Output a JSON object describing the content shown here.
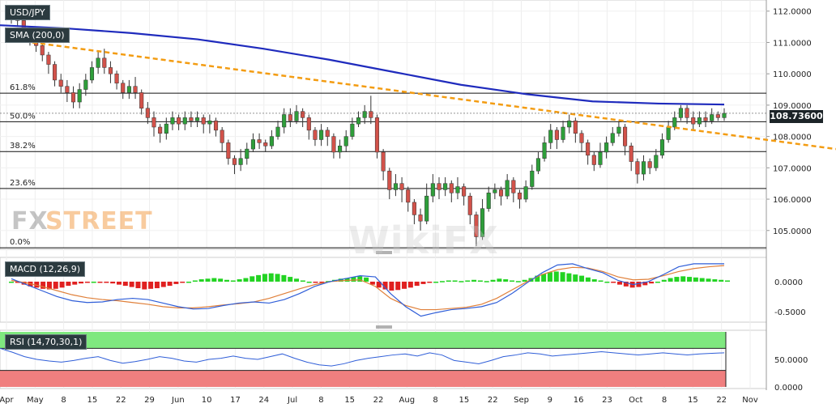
{
  "panels": {
    "main": {
      "label": "USD/JPY",
      "sma_label": "SMA (200,0)"
    },
    "macd": {
      "label": "MACD (12,26,9)"
    },
    "rsi": {
      "label": "RSI (14,70,30,1)"
    }
  },
  "last_price": "108.73600",
  "watermarks": {
    "fx": "FX",
    "street": "STREET",
    "wikifx": "WikiFX"
  },
  "colors": {
    "up": "#2e9e3a",
    "down": "#d2524a",
    "sma": "#1f2bbd",
    "trend": "#f39c12",
    "macd_line": "#2f5ed8",
    "signal_line": "#e0803a",
    "rsi_line": "#2f5ed8",
    "overbought": "#7fe87f",
    "oversold": "#f07f7f"
  },
  "chart_data": [
    {
      "type": "candlestick",
      "title": "USD/JPY",
      "x_ticks": [
        "Apr",
        "May",
        "8",
        "15",
        "22",
        "29",
        "Jun",
        "10",
        "17",
        "24",
        "Jul",
        "8",
        "15",
        "22",
        "Aug",
        "8",
        "15",
        "22",
        "Sep",
        "9",
        "16",
        "23",
        "Oct",
        "8",
        "15",
        "22",
        "Nov"
      ],
      "y_ticks": [
        "112.0000",
        "111.0000",
        "110.0000",
        "109.0000",
        "108.0000",
        "107.0000",
        "106.0000",
        "105.0000"
      ],
      "ylim": [
        104.4,
        112.2
      ],
      "fib_levels": [
        {
          "label": "61.8%",
          "value": 109.38
        },
        {
          "label": "50.0%",
          "value": 108.47
        },
        {
          "label": "38.2%",
          "value": 107.52
        },
        {
          "label": "23.6%",
          "value": 106.34
        },
        {
          "label": "0.0%",
          "value": 104.45
        }
      ],
      "candles": [
        [
          111.9,
          111.8,
          112.1,
          111.6
        ],
        [
          111.8,
          111.7,
          112.0,
          111.5
        ],
        [
          111.7,
          111.3,
          111.8,
          111.1
        ],
        [
          111.3,
          111.1,
          111.5,
          110.9
        ],
        [
          111.1,
          110.9,
          111.2,
          110.7
        ],
        [
          110.9,
          110.6,
          111.0,
          110.4
        ],
        [
          110.6,
          110.3,
          110.7,
          110.0
        ],
        [
          110.3,
          109.8,
          110.4,
          109.6
        ],
        [
          109.8,
          109.6,
          110.0,
          109.4
        ],
        [
          109.6,
          109.4,
          109.8,
          109.1
        ],
        [
          109.4,
          109.1,
          109.6,
          108.9
        ],
        [
          109.1,
          109.5,
          109.7,
          108.9
        ],
        [
          109.5,
          109.8,
          110.0,
          109.3
        ],
        [
          109.8,
          110.2,
          110.4,
          109.7
        ],
        [
          110.2,
          110.5,
          110.7,
          110.0
        ],
        [
          110.5,
          110.2,
          110.8,
          110.0
        ],
        [
          110.2,
          110.0,
          110.4,
          109.7
        ],
        [
          110.0,
          109.7,
          110.1,
          109.5
        ],
        [
          109.7,
          109.4,
          109.8,
          109.2
        ],
        [
          109.4,
          109.6,
          109.8,
          109.2
        ],
        [
          109.6,
          109.4,
          109.9,
          109.2
        ],
        [
          109.4,
          108.9,
          109.5,
          108.7
        ],
        [
          108.9,
          108.6,
          109.1,
          108.4
        ],
        [
          108.6,
          108.3,
          108.8,
          108.0
        ],
        [
          108.3,
          108.1,
          108.4,
          107.8
        ],
        [
          108.1,
          108.4,
          108.6,
          107.9
        ],
        [
          108.4,
          108.6,
          108.8,
          108.2
        ],
        [
          108.6,
          108.4,
          108.7,
          108.2
        ],
        [
          108.4,
          108.6,
          108.8,
          108.2
        ],
        [
          108.6,
          108.5,
          108.8,
          108.3
        ],
        [
          108.5,
          108.6,
          108.8,
          108.3
        ],
        [
          108.6,
          108.4,
          108.7,
          108.1
        ],
        [
          108.4,
          108.5,
          108.7,
          108.1
        ],
        [
          108.5,
          108.2,
          108.6,
          108.0
        ],
        [
          108.2,
          107.8,
          108.3,
          107.5
        ],
        [
          107.8,
          107.3,
          107.9,
          107.1
        ],
        [
          107.3,
          107.1,
          107.4,
          106.8
        ],
        [
          107.1,
          107.3,
          107.6,
          106.9
        ],
        [
          107.3,
          107.6,
          107.8,
          107.1
        ],
        [
          107.6,
          107.9,
          108.1,
          107.5
        ],
        [
          107.9,
          107.8,
          108.1,
          107.6
        ],
        [
          107.8,
          107.7,
          107.9,
          107.5
        ],
        [
          107.7,
          108.0,
          108.2,
          107.6
        ],
        [
          108.0,
          108.3,
          108.5,
          107.9
        ],
        [
          108.3,
          108.7,
          108.9,
          108.1
        ],
        [
          108.7,
          108.5,
          108.9,
          108.3
        ],
        [
          108.5,
          108.8,
          109.0,
          108.4
        ],
        [
          108.8,
          108.6,
          108.9,
          108.3
        ],
        [
          108.6,
          108.2,
          108.7,
          107.9
        ],
        [
          108.2,
          107.9,
          108.3,
          107.7
        ],
        [
          107.9,
          108.2,
          108.4,
          107.7
        ],
        [
          108.2,
          108.0,
          108.3,
          107.7
        ],
        [
          108.0,
          107.5,
          108.1,
          107.3
        ],
        [
          107.5,
          107.7,
          107.9,
          107.3
        ],
        [
          107.7,
          108.0,
          108.2,
          107.5
        ],
        [
          108.0,
          108.4,
          108.6,
          107.9
        ],
        [
          108.4,
          108.6,
          108.8,
          108.3
        ],
        [
          108.6,
          108.8,
          109.0,
          108.4
        ],
        [
          108.8,
          108.6,
          109.3,
          108.4
        ],
        [
          108.6,
          107.5,
          108.7,
          107.3
        ],
        [
          107.5,
          106.9,
          107.6,
          106.6
        ],
        [
          106.9,
          106.3,
          107.0,
          106.0
        ],
        [
          106.3,
          106.5,
          106.8,
          106.1
        ],
        [
          106.5,
          106.3,
          106.7,
          105.9
        ],
        [
          106.3,
          105.9,
          106.4,
          105.6
        ],
        [
          105.9,
          105.5,
          106.0,
          105.2
        ],
        [
          105.5,
          105.3,
          105.7,
          105.0
        ],
        [
          105.3,
          106.1,
          106.5,
          105.2
        ],
        [
          106.1,
          106.5,
          106.8,
          105.9
        ],
        [
          106.5,
          106.3,
          106.7,
          106.0
        ],
        [
          106.3,
          106.5,
          106.7,
          106.1
        ],
        [
          106.5,
          106.2,
          106.6,
          105.9
        ],
        [
          106.2,
          106.4,
          106.7,
          106.0
        ],
        [
          106.4,
          106.1,
          106.5,
          105.8
        ],
        [
          106.1,
          105.5,
          106.2,
          105.2
        ],
        [
          105.5,
          104.8,
          105.6,
          104.5
        ],
        [
          104.8,
          105.7,
          106.0,
          104.7
        ],
        [
          105.7,
          106.2,
          106.4,
          105.6
        ],
        [
          106.2,
          106.3,
          106.5,
          106.0
        ],
        [
          106.3,
          106.1,
          106.4,
          105.8
        ],
        [
          106.1,
          106.6,
          106.8,
          106.0
        ],
        [
          106.6,
          106.2,
          106.7,
          105.9
        ],
        [
          106.2,
          106.0,
          106.3,
          105.7
        ],
        [
          106.0,
          106.4,
          106.6,
          105.9
        ],
        [
          106.4,
          106.9,
          107.1,
          106.3
        ],
        [
          106.9,
          107.3,
          107.5,
          106.8
        ],
        [
          107.3,
          107.8,
          108.0,
          107.2
        ],
        [
          107.8,
          108.2,
          108.4,
          107.6
        ],
        [
          108.2,
          107.9,
          108.3,
          107.6
        ],
        [
          107.9,
          108.3,
          108.5,
          107.8
        ],
        [
          108.3,
          108.5,
          108.7,
          108.1
        ],
        [
          108.5,
          108.1,
          108.6,
          107.8
        ],
        [
          108.1,
          107.8,
          108.2,
          107.5
        ],
        [
          107.8,
          107.4,
          107.9,
          107.1
        ],
        [
          107.4,
          107.1,
          107.5,
          106.9
        ],
        [
          107.1,
          107.5,
          107.8,
          107.0
        ],
        [
          107.5,
          107.8,
          108.0,
          107.3
        ],
        [
          107.8,
          108.1,
          108.3,
          107.7
        ],
        [
          108.1,
          108.3,
          108.5,
          108.0
        ],
        [
          108.3,
          107.7,
          108.4,
          107.4
        ],
        [
          107.7,
          107.2,
          107.8,
          106.9
        ],
        [
          107.2,
          106.8,
          107.3,
          106.5
        ],
        [
          106.8,
          107.2,
          107.4,
          106.6
        ],
        [
          107.2,
          107.0,
          107.3,
          106.8
        ],
        [
          107.0,
          107.4,
          107.6,
          106.9
        ],
        [
          107.4,
          107.9,
          108.1,
          107.3
        ],
        [
          107.9,
          108.3,
          108.5,
          107.8
        ],
        [
          108.3,
          108.6,
          108.8,
          108.2
        ],
        [
          108.6,
          108.9,
          109.0,
          108.5
        ],
        [
          108.9,
          108.6,
          109.0,
          108.4
        ],
        [
          108.6,
          108.4,
          108.8,
          108.2
        ],
        [
          108.4,
          108.6,
          108.8,
          108.3
        ],
        [
          108.6,
          108.5,
          108.8,
          108.3
        ],
        [
          108.5,
          108.7,
          108.9,
          108.4
        ],
        [
          108.7,
          108.6,
          108.8,
          108.5
        ],
        [
          108.6,
          108.74,
          108.9,
          108.5
        ]
      ],
      "sma_200": [
        111.55,
        111.45,
        111.3,
        111.1,
        110.8,
        110.45,
        110.05,
        109.65,
        109.35,
        109.12,
        109.05,
        109.02
      ],
      "trendline": {
        "start": 111.0,
        "end": 107.6
      }
    },
    {
      "type": "bar+line",
      "title": "MACD (12,26,9)",
      "y_ticks": [
        "0.0000",
        "-0.5000"
      ],
      "ylim": [
        -0.68,
        0.38
      ],
      "histogram": [
        0.0,
        -0.02,
        -0.05,
        -0.08,
        -0.1,
        -0.12,
        -0.13,
        -0.12,
        -0.1,
        -0.07,
        -0.05,
        -0.03,
        -0.01,
        0.0,
        -0.01,
        -0.02,
        -0.03,
        -0.05,
        -0.07,
        -0.09,
        -0.11,
        -0.13,
        -0.12,
        -0.11,
        -0.09,
        -0.07,
        -0.04,
        -0.02,
        0.0,
        0.02,
        0.04,
        0.05,
        0.06,
        0.05,
        0.03,
        0.02,
        0.04,
        0.06,
        0.09,
        0.11,
        0.13,
        0.14,
        0.13,
        0.11,
        0.08,
        0.05,
        0.02,
        0.0,
        -0.02,
        -0.01,
        0.01,
        0.03,
        0.05,
        0.06,
        0.08,
        0.09,
        0.07,
        -0.05,
        -0.1,
        -0.13,
        -0.15,
        -0.14,
        -0.12,
        -0.1,
        -0.07,
        -0.04,
        -0.02,
        0.0,
        0.01,
        0.02,
        0.02,
        0.01,
        0.02,
        0.03,
        0.02,
        0.01,
        0.03,
        0.05,
        0.04,
        0.02,
        0.01,
        0.03,
        0.06,
        0.1,
        0.13,
        0.16,
        0.17,
        0.16,
        0.14,
        0.12,
        0.1,
        0.07,
        0.04,
        0.02,
        0.0,
        -0.02,
        -0.05,
        -0.08,
        -0.1,
        -0.09,
        -0.06,
        -0.03,
        0.0,
        0.03,
        0.06,
        0.08,
        0.09,
        0.08,
        0.07,
        0.06,
        0.05,
        0.04,
        0.03,
        0.02
      ],
      "macd_line": [
        0.05,
        -0.05,
        -0.15,
        -0.25,
        -0.32,
        -0.35,
        -0.34,
        -0.3,
        -0.28,
        -0.3,
        -0.36,
        -0.42,
        -0.46,
        -0.45,
        -0.4,
        -0.36,
        -0.34,
        -0.36,
        -0.3,
        -0.2,
        -0.08,
        0.0,
        0.05,
        0.1,
        0.08,
        -0.2,
        -0.42,
        -0.58,
        -0.52,
        -0.47,
        -0.45,
        -0.42,
        -0.35,
        -0.2,
        -0.02,
        0.15,
        0.28,
        0.3,
        0.22,
        0.15,
        0.02,
        -0.05,
        0.0,
        0.12,
        0.25,
        0.3,
        0.3,
        0.3
      ],
      "signal_line": [
        0.02,
        -0.02,
        -0.08,
        -0.15,
        -0.22,
        -0.27,
        -0.3,
        -0.32,
        -0.35,
        -0.38,
        -0.42,
        -0.44,
        -0.44,
        -0.42,
        -0.39,
        -0.37,
        -0.34,
        -0.28,
        -0.2,
        -0.12,
        -0.05,
        0.0,
        0.02,
        0.03,
        -0.08,
        -0.28,
        -0.4,
        -0.47,
        -0.47,
        -0.45,
        -0.43,
        -0.38,
        -0.28,
        -0.14,
        0.0,
        0.12,
        0.2,
        0.24,
        0.23,
        0.17,
        0.08,
        0.03,
        0.04,
        0.1,
        0.17,
        0.22,
        0.25,
        0.27
      ]
    },
    {
      "type": "line",
      "title": "RSI (14,70,30,1)",
      "y_ticks": [
        "50.0000",
        "0.0000"
      ],
      "ylim": [
        0,
        100
      ],
      "overbought": 70,
      "oversold": 30,
      "rsi": [
        70,
        63,
        55,
        50,
        47,
        45,
        48,
        52,
        55,
        48,
        43,
        46,
        50,
        55,
        52,
        47,
        45,
        50,
        52,
        56,
        52,
        50,
        55,
        60,
        52,
        45,
        40,
        38,
        42,
        48,
        52,
        55,
        58,
        60,
        56,
        62,
        58,
        48,
        45,
        42,
        48,
        55,
        58,
        62,
        60,
        56,
        58,
        60,
        62,
        64,
        62,
        60,
        58,
        60,
        62,
        60,
        58,
        60,
        61,
        62
      ]
    }
  ]
}
